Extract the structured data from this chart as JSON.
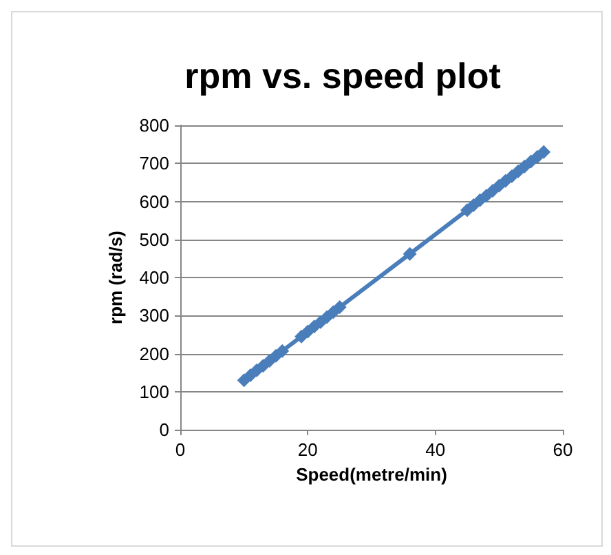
{
  "chart_data": {
    "type": "line",
    "title": "rpm vs. speed plot",
    "xlabel": "Speed(metre/min)",
    "ylabel": "rpm (rad/s)",
    "series": [
      {
        "color": "#4a7ebb",
        "x": [
          10,
          11,
          12,
          13,
          14,
          15,
          16,
          19,
          20,
          21,
          22,
          23,
          24,
          25,
          36,
          45,
          46,
          47,
          48,
          49,
          50,
          51,
          52,
          53,
          54,
          55,
          56,
          57
        ],
        "values": [
          130,
          143,
          156,
          168,
          181,
          194,
          207,
          245,
          258,
          271,
          283,
          296,
          309,
          322,
          462,
          577,
          590,
          603,
          615,
          628,
          641,
          654,
          666,
          679,
          692,
          705,
          717,
          730
        ]
      }
    ],
    "xlim": [
      0,
      60
    ],
    "xticks": [
      0,
      20,
      40,
      60
    ],
    "ylim": [
      0,
      800
    ],
    "yticks": [
      0,
      100,
      200,
      300,
      400,
      500,
      600,
      700,
      800
    ],
    "grid": "y",
    "marker": "diamond",
    "line_style": "solid"
  }
}
